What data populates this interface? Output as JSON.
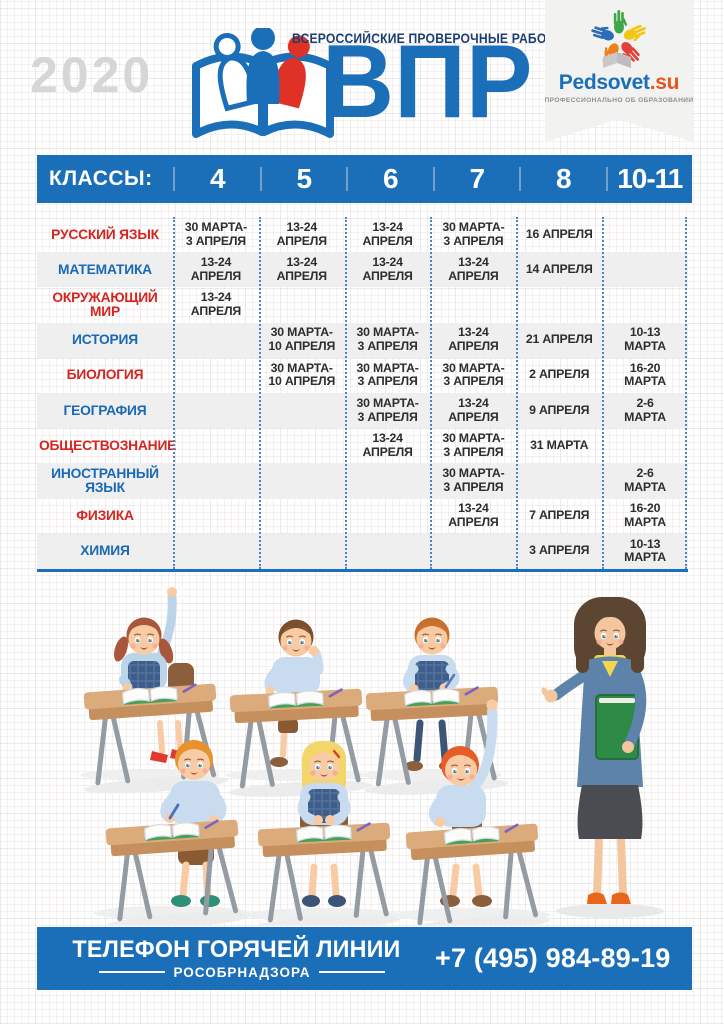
{
  "header": {
    "year": "2020",
    "logo_title": "ВПР",
    "logo_subtitle": "ВСЕРОССИЙСКИЕ ПРОВЕРОЧНЫЕ РАБОТЫ",
    "partner": {
      "name_main": "Pedsovet",
      "name_suffix": ".su",
      "tagline": "ПРОФЕССИОНАЛЬНО ОБ ОБРАЗОВАНИИ"
    }
  },
  "table": {
    "header_label": "КЛАССЫ:",
    "classes": [
      "4",
      "5",
      "6",
      "7",
      "8",
      "10-11"
    ],
    "rows": [
      {
        "subject": "РУССКИЙ ЯЗЫК",
        "color": "red",
        "dates": [
          "30 МАРТА-\n3 АПРЕЛЯ",
          "13-24\nАПРЕЛЯ",
          "13-24\nАПРЕЛЯ",
          "30 МАРТА-\n3 АПРЕЛЯ",
          "16 АПРЕЛЯ",
          ""
        ]
      },
      {
        "subject": "МАТЕМАТИКА",
        "color": "blue",
        "dates": [
          "13-24\nАПРЕЛЯ",
          "13-24\nАПРЕЛЯ",
          "13-24\nАПРЕЛЯ",
          "13-24\nАПРЕЛЯ",
          "14 АПРЕЛЯ",
          ""
        ]
      },
      {
        "subject": "ОКРУЖАЮЩИЙ МИР",
        "color": "red",
        "dates": [
          "13-24\nАПРЕЛЯ",
          "",
          "",
          "",
          "",
          ""
        ]
      },
      {
        "subject": "ИСТОРИЯ",
        "color": "blue",
        "dates": [
          "",
          "30 МАРТА-\n10 АПРЕЛЯ",
          "30 МАРТА-\n3 АПРЕЛЯ",
          "13-24\nАПРЕЛЯ",
          "21 АПРЕЛЯ",
          "10-13\nМАРТА"
        ]
      },
      {
        "subject": "БИОЛОГИЯ",
        "color": "red",
        "dates": [
          "",
          "30 МАРТА-\n10 АПРЕЛЯ",
          "30 МАРТА-\n3 АПРЕЛЯ",
          "30 МАРТА-\n3 АПРЕЛЯ",
          "2 АПРЕЛЯ",
          "16-20\nМАРТА"
        ]
      },
      {
        "subject": "ГЕОГРАФИЯ",
        "color": "blue",
        "dates": [
          "",
          "",
          "30 МАРТА-\n3 АПРЕЛЯ",
          "13-24\nАПРЕЛЯ",
          "9 АПРЕЛЯ",
          "2-6\nМАРТА"
        ]
      },
      {
        "subject": "ОБЩЕСТВОЗНАНИЕ",
        "color": "red",
        "dates": [
          "",
          "",
          "13-24\nАПРЕЛЯ",
          "30 МАРТА-\n3 АПРЕЛЯ",
          "31 МАРТА",
          ""
        ]
      },
      {
        "subject": "ИНОСТРАННЫЙ ЯЗЫК",
        "color": "blue",
        "dates": [
          "",
          "",
          "",
          "30 МАРТА-\n3 АПРЕЛЯ",
          "",
          "2-6\nМАРТА"
        ]
      },
      {
        "subject": "ФИЗИКА",
        "color": "red",
        "dates": [
          "",
          "",
          "",
          "13-24\nАПРЕЛЯ",
          "7 АПРЕЛЯ",
          "16-20\nМАРТА"
        ]
      },
      {
        "subject": "ХИМИЯ",
        "color": "blue",
        "dates": [
          "",
          "",
          "",
          "",
          "3 АПРЕЛЯ",
          "10-13\nМАРТА"
        ]
      }
    ]
  },
  "footer": {
    "line1": "ТЕЛЕФОН ГОРЯЧЕЙ ЛИНИИ",
    "line2": "РОСОБРНАДЗОРА",
    "phone": "+7 (495) 984-89-19"
  },
  "colors": {
    "blue": "#1B6FB8",
    "blue2": "#1B69B5",
    "red": "#D6251F",
    "navy": "#1C3E73",
    "row-gray": "#EFEFEF",
    "year-gray": "#D6D6D6"
  }
}
